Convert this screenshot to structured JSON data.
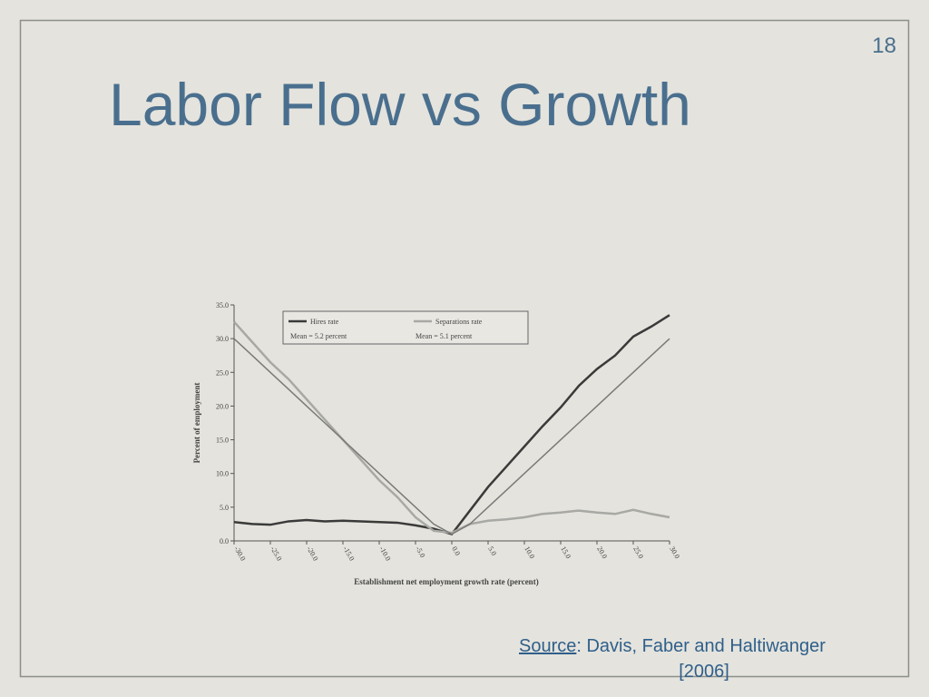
{
  "slide": {
    "number": "18",
    "title": "Labor Flow vs Growth",
    "source": {
      "link": "Source",
      "lines": [
        ": Davis, Faber and Haltiwanger",
        "[2006]"
      ]
    }
  },
  "chart_data": {
    "type": "line",
    "ylabel": "Percent of employment",
    "xlabel": "Establishment net employment growth rate (percent)",
    "x": [
      -30,
      -27.5,
      -25,
      -22.5,
      -20,
      -17.5,
      -15,
      -12.5,
      -10,
      -7.5,
      -5,
      -2.5,
      0,
      2.5,
      5,
      7.5,
      10,
      12.5,
      15,
      17.5,
      20,
      22.5,
      25,
      27.5,
      30
    ],
    "xlim": [
      -30,
      30
    ],
    "xticks": [
      {
        "value": -30,
        "label": "-30.0"
      },
      {
        "value": -25,
        "label": "-25.0"
      },
      {
        "value": -20,
        "label": "-20.0"
      },
      {
        "value": -15,
        "label": "-15.0"
      },
      {
        "value": -10,
        "label": "-10.0"
      },
      {
        "value": -5,
        "label": "-5.0"
      },
      {
        "value": 0,
        "label": "0.0"
      },
      {
        "value": 5,
        "label": "5.0"
      },
      {
        "value": 10,
        "label": "10.0"
      },
      {
        "value": 15,
        "label": "15.0"
      },
      {
        "value": 20,
        "label": "20.0"
      },
      {
        "value": 25,
        "label": "25.0"
      },
      {
        "value": 30,
        "label": "30.0"
      }
    ],
    "ylim": [
      0,
      35
    ],
    "yticks": [
      {
        "value": 0,
        "label": "0.0"
      },
      {
        "value": 5,
        "label": "5.0"
      },
      {
        "value": 10,
        "label": "10.0"
      },
      {
        "value": 15,
        "label": "15.0"
      },
      {
        "value": 20,
        "label": "20.0"
      },
      {
        "value": 25,
        "label": "25.0"
      },
      {
        "value": 30,
        "label": "30.0"
      },
      {
        "value": 35,
        "label": "35.0"
      }
    ],
    "series": [
      {
        "name": "Hires rate",
        "note": "Mean = 5.2 percent",
        "color": "#3a3a3a",
        "values": [
          2.8,
          2.5,
          2.4,
          2.9,
          3.1,
          2.9,
          3.0,
          2.9,
          2.8,
          2.7,
          2.3,
          1.8,
          1.0,
          4.5,
          8.0,
          11.0,
          14.0,
          17.0,
          19.8,
          23.0,
          25.5,
          27.5,
          30.3,
          31.8,
          33.5
        ]
      },
      {
        "name": "Separations rate",
        "note": "Mean = 5.1 percent",
        "color": "#a8a8a4",
        "values": [
          32.5,
          29.5,
          26.5,
          24.0,
          21.0,
          18.0,
          15.0,
          12.0,
          9.0,
          6.5,
          3.5,
          1.5,
          1.2,
          2.5,
          3.0,
          3.2,
          3.5,
          4.0,
          4.2,
          4.5,
          4.2,
          4.0,
          4.6,
          4.0,
          3.5
        ]
      },
      {
        "color": "#7a7a78",
        "values": [
          30,
          27.5,
          25,
          22.5,
          20,
          17.5,
          15,
          12.5,
          10,
          7.5,
          5,
          2.5,
          1,
          2.5,
          5,
          7.5,
          10,
          12.5,
          15,
          17.5,
          20,
          22.5,
          25,
          27.5,
          30
        ]
      }
    ]
  }
}
